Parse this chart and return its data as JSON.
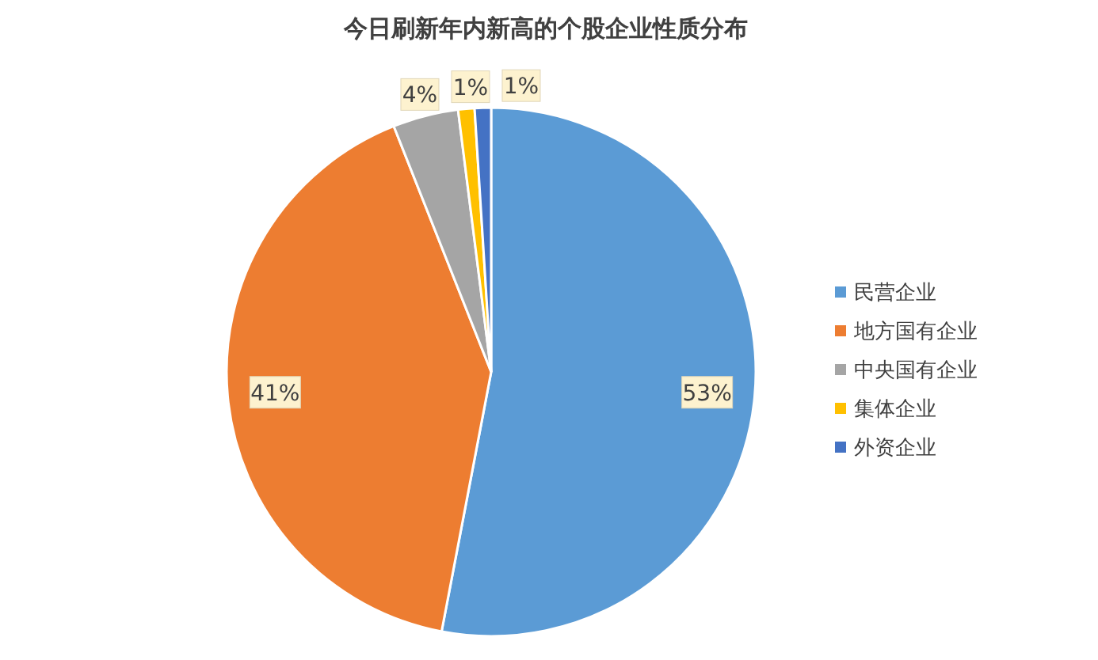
{
  "chart_data": {
    "type": "pie",
    "title": "今日刷新年内新高的个股企业性质分布",
    "categories": [
      "民营企业",
      "地方国有企业",
      "中央国有企业",
      "集体企业",
      "外资企业"
    ],
    "values": [
      53,
      41,
      4,
      1,
      1
    ],
    "colors": [
      "#5b9bd5",
      "#ed7d31",
      "#a5a5a5",
      "#ffc000",
      "#4472c4"
    ],
    "value_labels": [
      "53%",
      "41%",
      "4%",
      "1%",
      "1%"
    ],
    "legend": "right"
  }
}
